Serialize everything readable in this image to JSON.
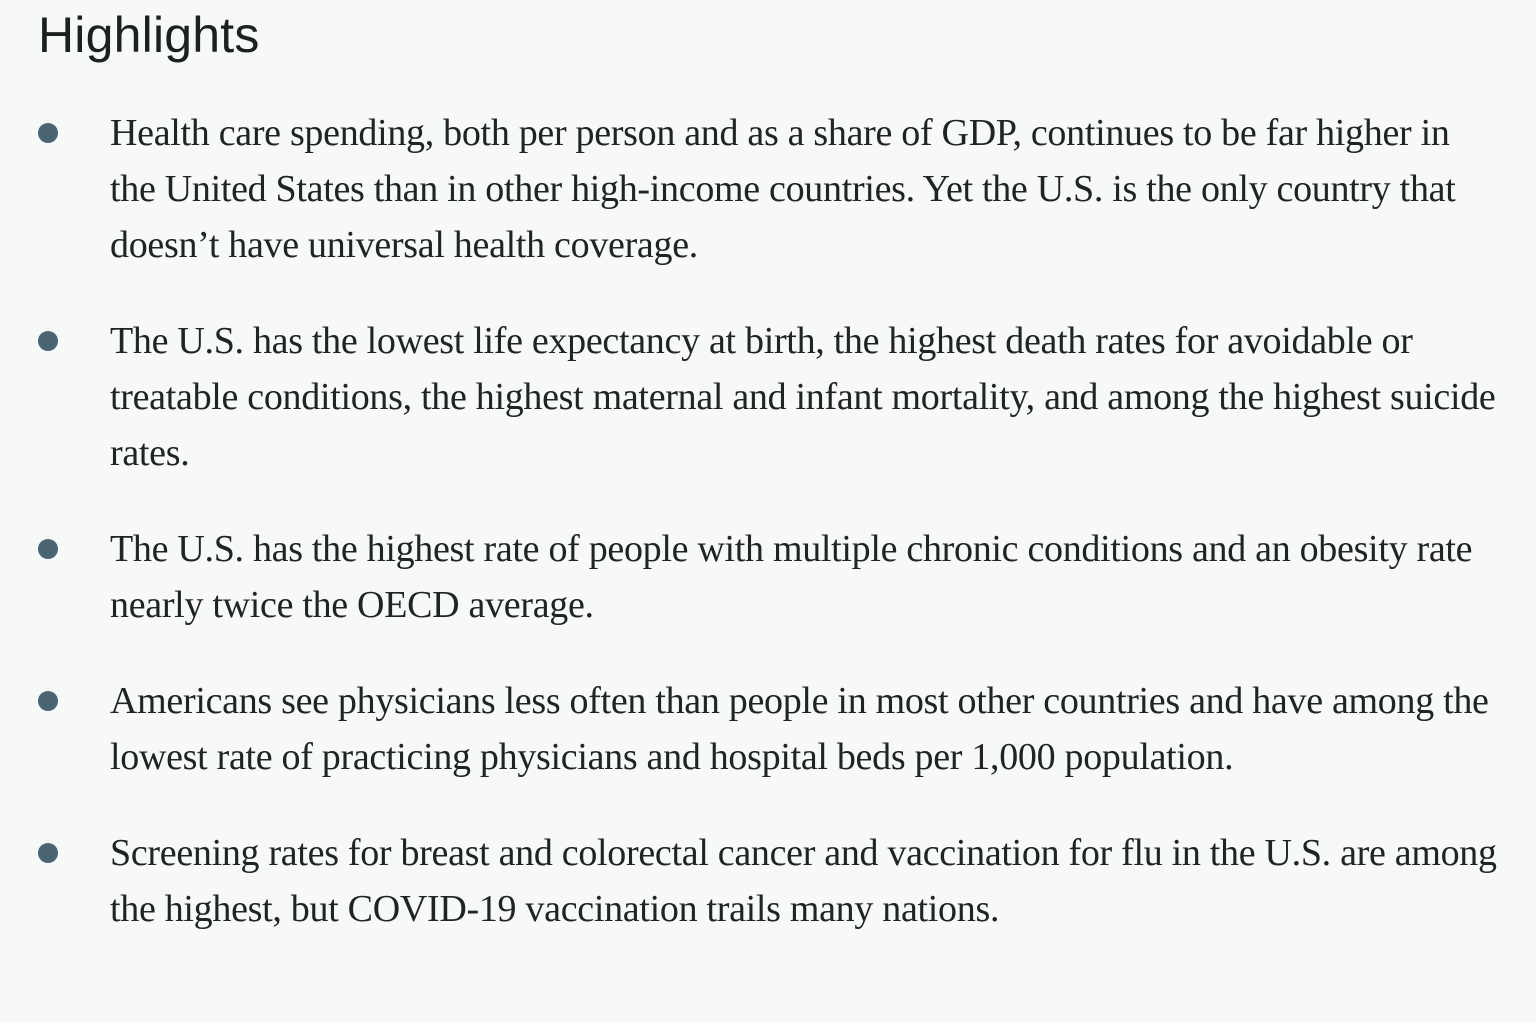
{
  "page": {
    "background": "#f7f8f8",
    "bullet_color": "#4a6473",
    "heading_color": "#1d2023",
    "text_color": "#212426"
  },
  "section": {
    "title": "Highlights",
    "items": [
      {
        "text": "Health care spending, both per person and as a share of GDP, continues to be far higher in the United States than in other high-income countries. Yet the U.S. is the only country that doesn’t have universal health coverage."
      },
      {
        "text": "The U.S. has the lowest life expectancy at birth, the highest death rates for avoidable or treatable conditions, the highest maternal and infant mortality, and among the highest suicide rates."
      },
      {
        "text": "The U.S. has the highest rate of people with multiple chronic conditions and an obesity rate nearly twice the OECD average."
      },
      {
        "text": "Americans see physicians less often than people in most other countries and have among the lowest rate of practicing physicians and hospital beds per 1,000 population."
      },
      {
        "text": "Screening rates for breast and colorectal cancer and vaccination for flu in the U.S. are among the highest, but COVID-19 vaccination trails many nations."
      }
    ]
  }
}
